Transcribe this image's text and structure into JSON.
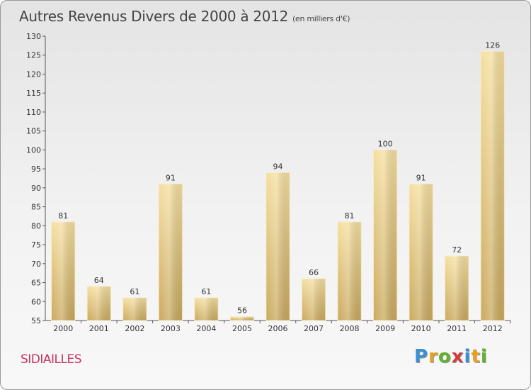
{
  "header": {
    "title": "Autres Revenus Divers de 2000 à 2012",
    "unit": "(en milliers d'€)"
  },
  "footer": {
    "commune": "SIDIAILLES",
    "logo_letters": [
      "P",
      "r",
      "o",
      "x",
      "i",
      "t",
      "i"
    ],
    "logo_colors": [
      "#3a8fd6",
      "#e8a020",
      "#62b030",
      "#d23c3c",
      "#3a8fd6",
      "#e8a020",
      "#62b030"
    ]
  },
  "chart_data": {
    "type": "bar",
    "categories": [
      "2000",
      "2001",
      "2002",
      "2003",
      "2004",
      "2005",
      "2006",
      "2007",
      "2008",
      "2009",
      "2010",
      "2011",
      "2012"
    ],
    "values": [
      81,
      64,
      61,
      91,
      61,
      56,
      94,
      66,
      81,
      100,
      91,
      72,
      126
    ],
    "data_labels": [
      "81",
      "64",
      "61",
      "91",
      "61",
      "56",
      "94",
      "66",
      "81",
      "100",
      "91",
      "72",
      "126"
    ],
    "yticks": [
      55,
      60,
      65,
      70,
      75,
      80,
      85,
      90,
      95,
      100,
      105,
      110,
      115,
      120,
      125,
      130
    ],
    "ylim": [
      55,
      130
    ],
    "grid": false,
    "bar_color_top": "#f5dfa0",
    "bar_color_bottom": "#c9a95e"
  }
}
